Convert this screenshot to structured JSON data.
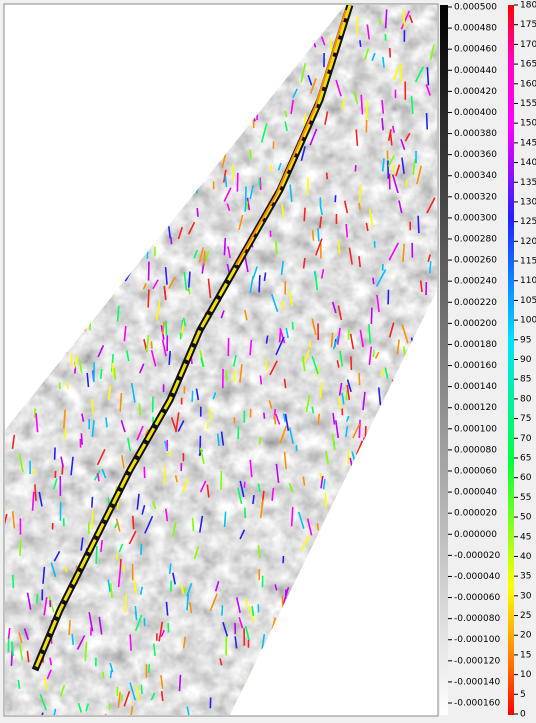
{
  "depth_colorbar": {
    "labels": [
      "0.000500",
      "0.000480",
      "0.000460",
      "0.000440",
      "0.000420",
      "0.000400",
      "0.000380",
      "0.000360",
      "0.000340",
      "0.000320",
      "0.000300",
      "0.000280",
      "0.000260",
      "0.000240",
      "0.000220",
      "0.000200",
      "0.000180",
      "0.000160",
      "0.000140",
      "0.000120",
      "0.000100",
      "0.000080",
      "0.000060",
      "0.000040",
      "0.000020",
      "0.000000",
      "-0.000020",
      "-0.000040",
      "-0.000060",
      "-0.000080",
      "-0.000100",
      "-0.000120",
      "-0.000140",
      "-0.000160"
    ]
  },
  "azimuth_colorbar": {
    "labels": [
      180,
      175,
      170,
      165,
      160,
      155,
      150,
      145,
      140,
      135,
      130,
      125,
      120,
      115,
      110,
      105,
      100,
      95,
      90,
      85,
      80,
      75,
      70,
      65,
      60,
      55,
      50,
      45,
      40,
      35,
      30,
      25,
      20,
      15,
      10,
      5,
      0
    ]
  }
}
